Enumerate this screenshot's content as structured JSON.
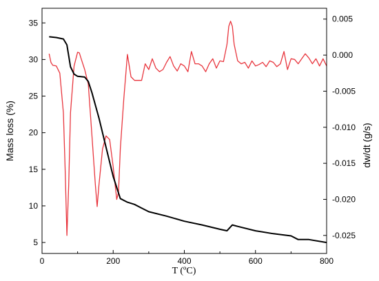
{
  "chart_data": {
    "type": "line",
    "xlabel": "T  (ºC)",
    "ylabel_left": "Mass loss (%)",
    "ylabel_right": "dw/dt (g/s)",
    "xlim": [
      0,
      800
    ],
    "ylim_left": [
      3.5,
      37
    ],
    "ylim_right": [
      -0.0275,
      0.0065
    ],
    "x_ticks": [
      "0",
      "200",
      "400",
      "600",
      "800"
    ],
    "y_ticks_left": [
      "5",
      "10",
      "15",
      "20",
      "25",
      "30",
      "35"
    ],
    "y_ticks_right": [
      "-0.025",
      "-0.020",
      "-0.015",
      "-0.010",
      "-0.005",
      "0.000",
      "0.005"
    ],
    "grid": false,
    "series": [
      {
        "axis": "left",
        "color": "#000000",
        "x": [
          20,
          40,
          60,
          70,
          80,
          90,
          100,
          120,
          130,
          140,
          160,
          180,
          200,
          220,
          240,
          260,
          280,
          300,
          350,
          400,
          450,
          500,
          520,
          535,
          550,
          600,
          650,
          700,
          720,
          750,
          800
        ],
        "y": [
          33.1,
          33.0,
          32.8,
          32.0,
          29.0,
          28.0,
          27.7,
          27.6,
          27.0,
          25.5,
          22.0,
          18.0,
          14.0,
          11.0,
          10.5,
          10.2,
          9.7,
          9.2,
          8.6,
          7.9,
          7.4,
          6.8,
          6.6,
          7.4,
          7.2,
          6.6,
          6.2,
          5.9,
          5.4,
          5.4,
          5.0
        ]
      },
      {
        "axis": "right",
        "color": "#e8343c",
        "x": [
          20,
          25,
          30,
          40,
          50,
          60,
          65,
          70,
          75,
          80,
          90,
          100,
          105,
          110,
          120,
          130,
          140,
          150,
          155,
          160,
          170,
          180,
          190,
          200,
          210,
          215,
          220,
          230,
          240,
          250,
          260,
          270,
          280,
          290,
          300,
          310,
          320,
          330,
          340,
          350,
          360,
          370,
          380,
          390,
          400,
          410,
          420,
          430,
          440,
          450,
          460,
          470,
          480,
          490,
          500,
          510,
          520,
          525,
          530,
          535,
          540,
          550,
          560,
          570,
          580,
          590,
          600,
          610,
          620,
          630,
          640,
          650,
          660,
          670,
          680,
          690,
          700,
          710,
          720,
          730,
          740,
          750,
          760,
          770,
          780,
          790,
          800
        ],
        "y": [
          0.0002,
          -0.001,
          -0.0014,
          -0.0015,
          -0.0025,
          -0.008,
          -0.016,
          -0.025,
          -0.018,
          -0.008,
          -0.0015,
          0.0004,
          0.0003,
          -0.0005,
          -0.002,
          -0.004,
          -0.011,
          -0.018,
          -0.021,
          -0.018,
          -0.013,
          -0.0112,
          -0.0117,
          -0.0155,
          -0.02,
          -0.019,
          -0.013,
          -0.006,
          0.0001,
          -0.003,
          -0.0035,
          -0.0035,
          -0.0035,
          -0.0012,
          -0.002,
          -0.0005,
          -0.0018,
          -0.0023,
          -0.002,
          -0.001,
          -0.0002,
          -0.0015,
          -0.0022,
          -0.0012,
          -0.0015,
          -0.0023,
          0.0005,
          -0.0012,
          -0.0012,
          -0.0015,
          -0.0023,
          -0.0012,
          -0.0005,
          -0.0018,
          -0.0008,
          -0.0009,
          0.0015,
          0.004,
          0.0047,
          0.004,
          0.0015,
          -0.0008,
          -0.0012,
          -0.001,
          -0.0018,
          -0.0008,
          -0.0015,
          -0.0013,
          -0.001,
          -0.0016,
          -0.0008,
          -0.001,
          -0.0016,
          -0.0012,
          0.0005,
          -0.002,
          -0.0005,
          -0.0006,
          -0.0012,
          -0.0005,
          0.0002,
          -0.0004,
          -0.0012,
          -0.0005,
          -0.0015,
          -0.0005,
          -0.0015
        ]
      }
    ]
  }
}
